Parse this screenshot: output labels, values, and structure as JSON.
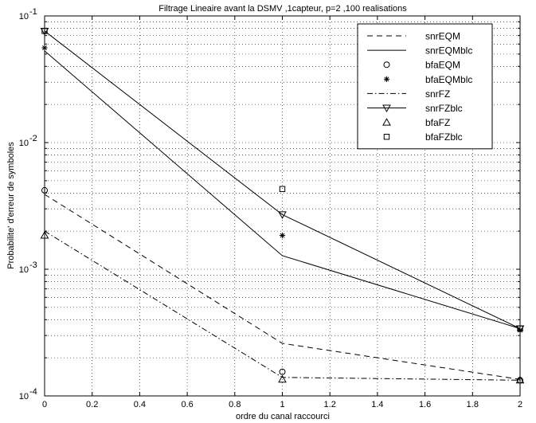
{
  "chart_data": {
    "type": "line",
    "title": "Filtrage Lineaire avant la DSMV ,1capteur, p=2 ,100 realisations",
    "xlabel": "ordre du canal raccourci",
    "ylabel": "Probabilite' d'erreur de symboles",
    "y_scale": "log",
    "xlim": [
      0,
      2
    ],
    "ylim": [
      0.0001,
      0.1
    ],
    "x_ticks": [
      0,
      0.2,
      0.4,
      0.6,
      0.8,
      1,
      1.2,
      1.4,
      1.6,
      1.8,
      2
    ],
    "x_tick_labels": [
      "0",
      "0.2",
      "0.4",
      "0.6",
      "0.8",
      "1",
      "1.2",
      "1.4",
      "1.6",
      "1.8",
      "2"
    ],
    "y_ticks": [
      0.0001,
      0.001,
      0.01,
      0.1
    ],
    "y_tick_labels": [
      {
        "base": "10",
        "exp": "-4"
      },
      {
        "base": "10",
        "exp": "-3"
      },
      {
        "base": "10",
        "exp": "-2"
      },
      {
        "base": "10",
        "exp": "-1"
      }
    ],
    "grid": true,
    "legend_position": "top-right",
    "x": [
      0,
      1,
      2
    ],
    "series": [
      {
        "name": "snrEQM",
        "style": "dashed",
        "marker": "none",
        "values": [
          0.0039,
          0.00026,
          0.000135
        ]
      },
      {
        "name": "snrEQMblc",
        "style": "solid",
        "marker": "none",
        "values": [
          0.053,
          0.00128,
          0.00034
        ]
      },
      {
        "name": "bfaEQM",
        "style": "none",
        "marker": "circle",
        "values": [
          0.0042,
          0.000155,
          0.000133
        ]
      },
      {
        "name": "bfaEQMblc",
        "style": "none",
        "marker": "star",
        "values": [
          0.056,
          0.00185,
          0.00033
        ]
      },
      {
        "name": "snrFZ",
        "style": "dashdot",
        "marker": "none",
        "values": [
          0.002,
          0.00014,
          0.000133
        ]
      },
      {
        "name": "snrFZblc",
        "style": "solid",
        "marker": "triangle-down",
        "values": [
          0.076,
          0.0027,
          0.00034
        ]
      },
      {
        "name": "bfaFZ",
        "style": "none",
        "marker": "triangle-up",
        "values": [
          0.00185,
          0.000135,
          0.000133
        ]
      },
      {
        "name": "bfaFZblc",
        "style": "none",
        "marker": "square",
        "values": [
          0.076,
          0.0043,
          0.00034
        ]
      }
    ]
  }
}
